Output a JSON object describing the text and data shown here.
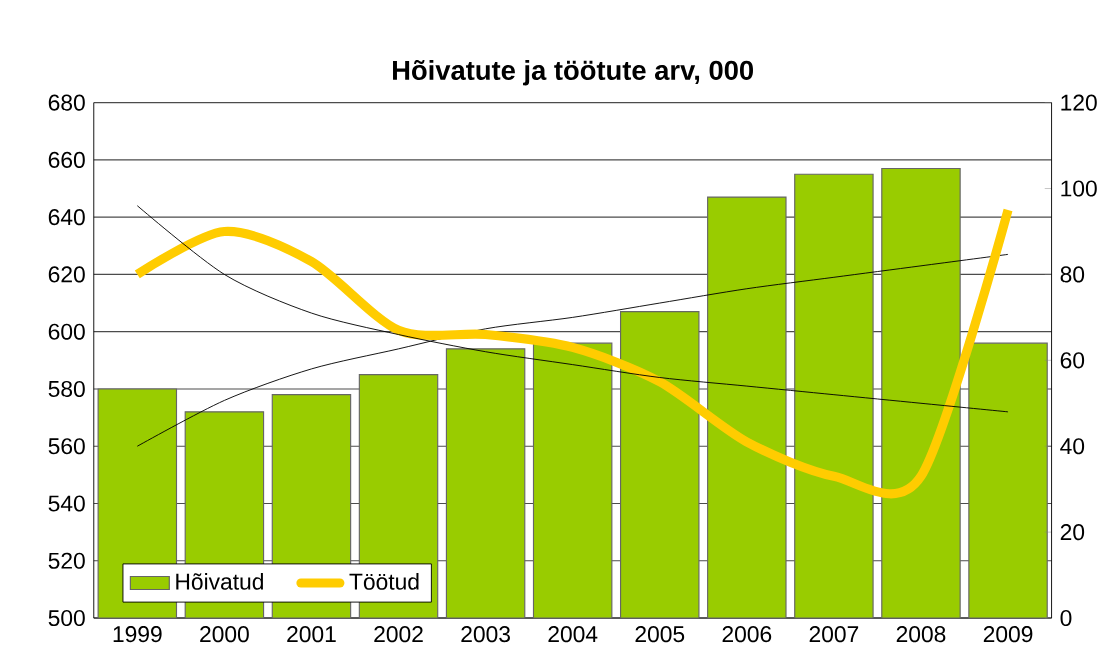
{
  "chart_data": {
    "type": "bar",
    "title": "Hõivatute ja töötute arv, 000",
    "categories": [
      "1999",
      "2000",
      "2001",
      "2002",
      "2003",
      "2004",
      "2005",
      "2006",
      "2007",
      "2008",
      "2009"
    ],
    "series": [
      {
        "name": "Hõivatud",
        "color": "#99cc00",
        "values": [
          580,
          572,
          578,
          585,
          594,
          596,
          607,
          647,
          655,
          657,
          596
        ]
      },
      {
        "name": "Töötud",
        "type": "line",
        "axis": "y2",
        "color": "#ffcc00",
        "values": [
          80,
          90,
          83,
          67,
          66,
          63,
          55,
          41,
          33,
          33,
          95
        ]
      },
      {
        "type": "line",
        "color": "#000000",
        "values": [
          560,
          576,
          587,
          594,
          601,
          605,
          610,
          615,
          619,
          623,
          627
        ]
      },
      {
        "type": "line",
        "axis": "y2",
        "color": "#000000",
        "values": [
          96,
          80,
          71,
          66,
          62,
          59,
          56,
          54,
          52,
          50,
          48
        ]
      }
    ],
    "ylim": [
      500,
      680
    ],
    "yticks": [
      500,
      520,
      540,
      560,
      580,
      600,
      620,
      640,
      660,
      680
    ],
    "y2lim": [
      0,
      120
    ],
    "y2ticks": [
      0,
      20,
      40,
      60,
      80,
      100,
      120
    ],
    "grid": "y",
    "legend": "bottom left"
  }
}
